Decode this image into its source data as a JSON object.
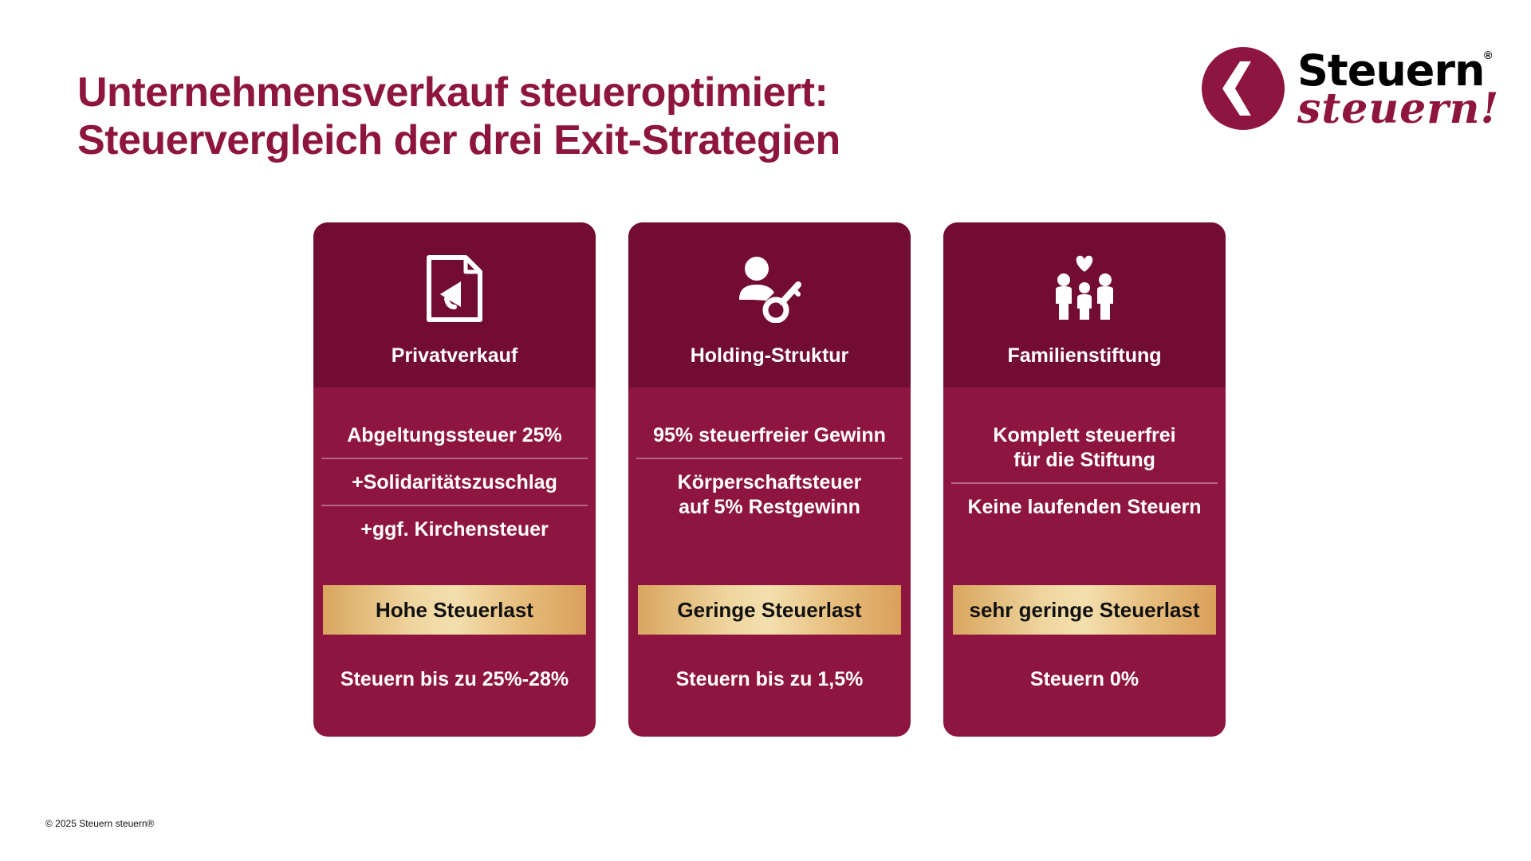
{
  "title": {
    "line1": "Unternehmensverkauf steueroptimiert:",
    "line2": "Steuervergleich der drei Exit-Strategien"
  },
  "logo": {
    "line1": "Steuern",
    "line2": "steuern!",
    "registered": "®"
  },
  "colors": {
    "primary": "#8e1540",
    "header": "#730c33",
    "badge_gold": "#e7bd7c"
  },
  "cards": [
    {
      "icon": "document-megaphone-icon",
      "title": "Privatverkauf",
      "items": [
        {
          "lines": [
            "Abgeltungssteuer 25%"
          ]
        },
        {
          "lines": [
            "+Solidaritätszuschlag"
          ]
        },
        {
          "lines": [
            "+ggf. Kirchensteuer"
          ]
        }
      ],
      "badge": "Hohe Steuerlast",
      "footer": "Steuern bis zu 25%-28%"
    },
    {
      "icon": "person-key-icon",
      "title": "Holding-Struktur",
      "items": [
        {
          "lines": [
            "95% steuerfreier Gewinn"
          ]
        },
        {
          "lines": [
            "Körperschaftsteuer",
            "auf 5% Restgewinn"
          ]
        }
      ],
      "badge": "Geringe Steuerlast",
      "footer": "Steuern bis zu 1,5%"
    },
    {
      "icon": "family-heart-icon",
      "title": "Familienstiftung",
      "items": [
        {
          "lines": [
            "Komplett steuerfrei",
            "für die Stiftung"
          ]
        },
        {
          "lines": [
            "Keine laufenden Steuern"
          ]
        }
      ],
      "badge": "sehr geringe Steuerlast",
      "footer": "Steuern 0%"
    }
  ],
  "copyright": "© 2025 Steuern steuern®"
}
